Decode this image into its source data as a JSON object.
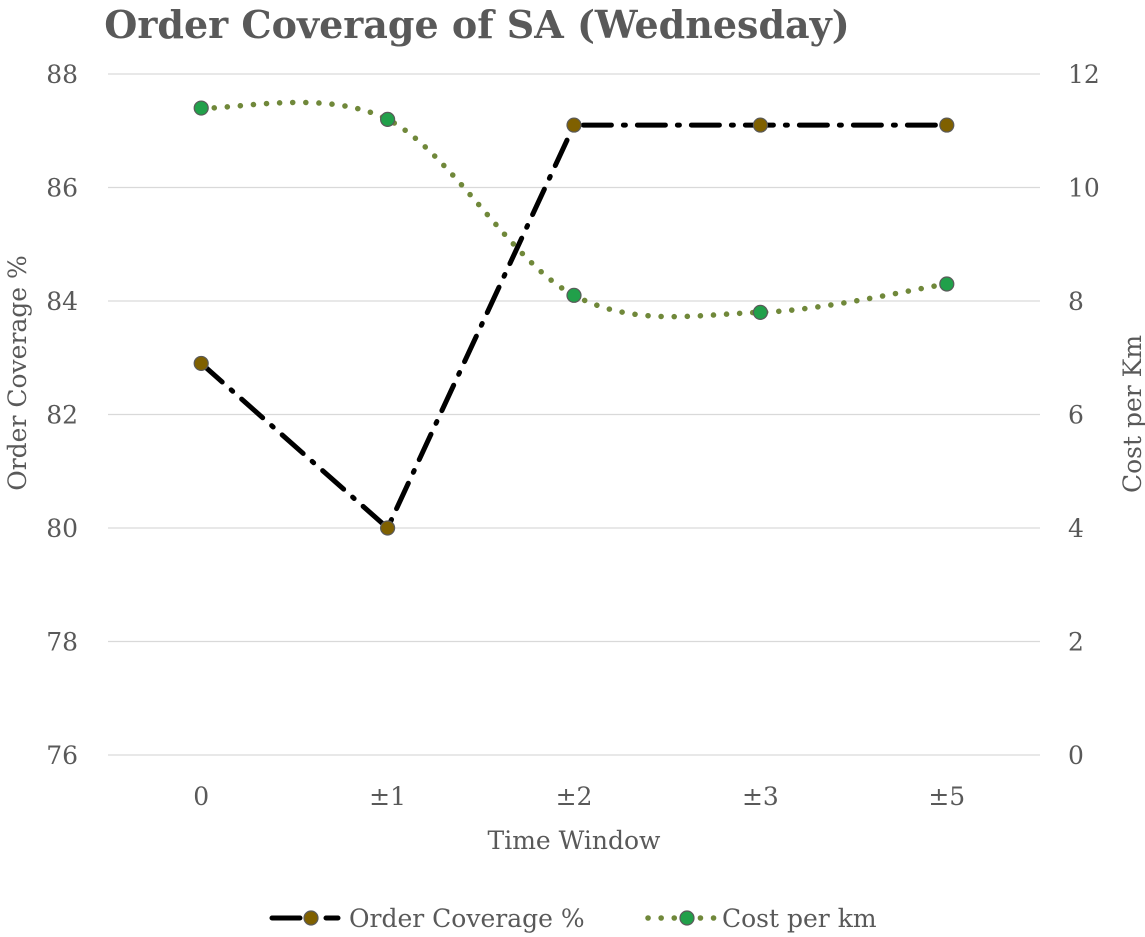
{
  "chart_data": {
    "type": "line",
    "title": "Order Coverage of SA (Wednesday)",
    "xlabel": "Time Window",
    "ylabel": "Order Coverage %",
    "y2label": "Cost per Km",
    "categories": [
      "0",
      "±1",
      "±2",
      "±3",
      "±5"
    ],
    "ylim": [
      76,
      88
    ],
    "yticks": [
      76,
      78,
      80,
      82,
      84,
      86,
      88
    ],
    "y2lim": [
      0,
      12
    ],
    "y2ticks": [
      0,
      2,
      4,
      6,
      8,
      10,
      12
    ],
    "grid": true,
    "legend_position": "bottom",
    "series": [
      {
        "name": "Order Coverage %",
        "axis": "left",
        "values": [
          82.9,
          80.0,
          87.1,
          87.1,
          87.1
        ],
        "line_color": "#000000",
        "line_style": "long-dash-dot",
        "marker_color": "#7f6000"
      },
      {
        "name": "Cost per km",
        "axis": "right",
        "values": [
          11.4,
          11.2,
          8.1,
          7.8,
          8.3
        ],
        "line_color": "#70883a",
        "line_style": "dotted",
        "marker_color": "#21a04a"
      }
    ]
  }
}
